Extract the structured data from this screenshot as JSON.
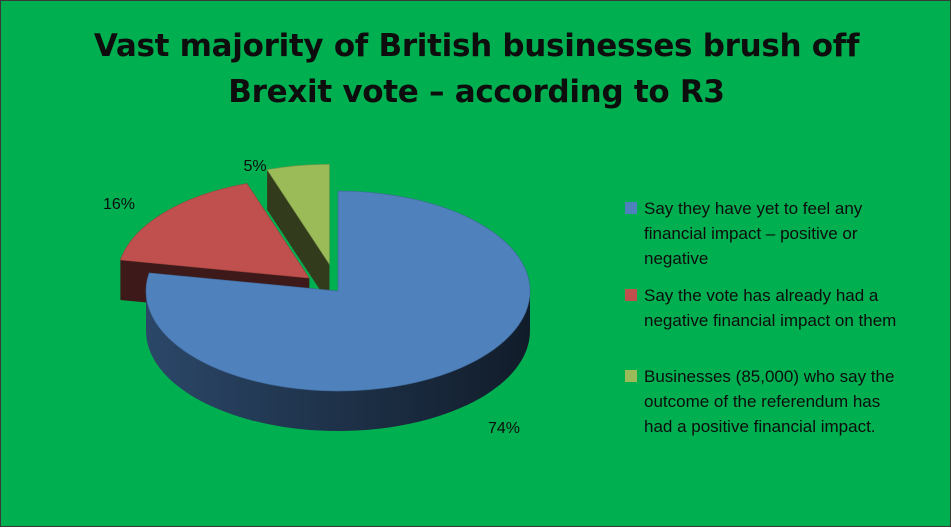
{
  "chart_data": {
    "type": "pie",
    "title_lines": [
      "Vast majority of British businesses brush off",
      "Brexit vote – according to R3"
    ],
    "series": [
      {
        "name": "",
        "values": [
          74,
          16,
          5
        ],
        "labels": [
          "74%",
          "16%",
          "5%"
        ]
      }
    ],
    "categories": [
      "Say they have yet to feel any financial impact – positive or negative",
      "Say the vote has already had a negative financial impact on them",
      "Businesses (85,000) who say the outcome of the referendum has had a positive financial impact."
    ],
    "legend_lines": [
      [
        "Say they have yet to feel any",
        "financial impact – positive or",
        "negative"
      ],
      [
        "Say the vote has already had a",
        "negative financial impact on them"
      ],
      [
        "Businesses (85,000) who say the",
        "outcome of the referendum has",
        "had a positive financial impact."
      ]
    ],
    "colors": [
      "#4f81bd",
      "#c0504d",
      "#9bbb59"
    ],
    "background": "#00b050",
    "legend_position": "right",
    "style": "3d-exploded"
  }
}
